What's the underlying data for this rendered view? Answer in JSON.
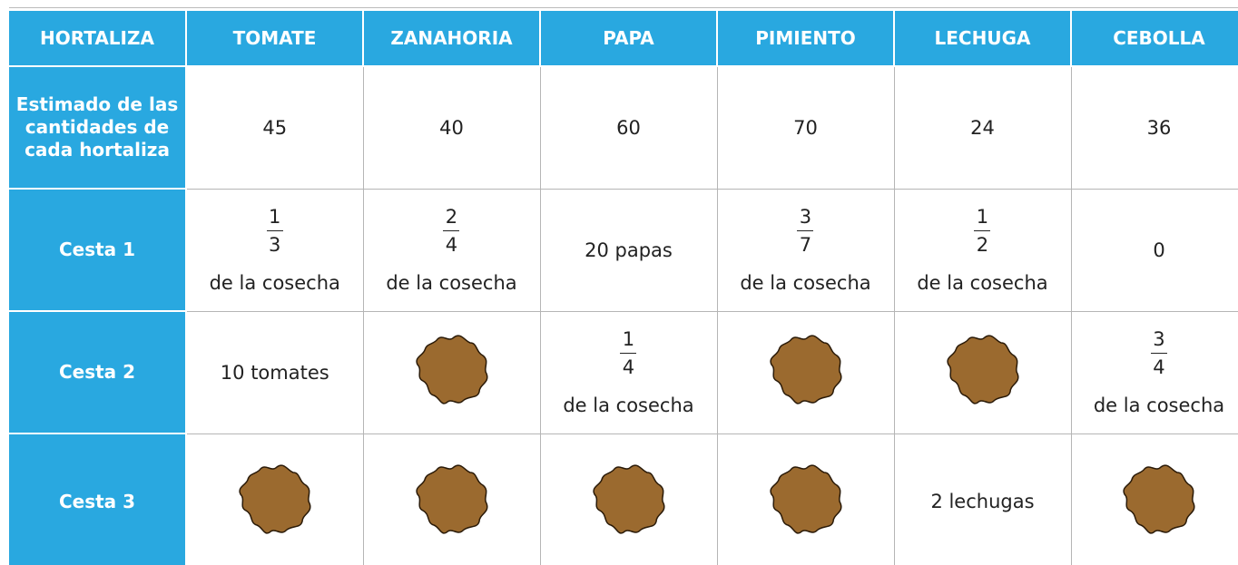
{
  "table": {
    "header": [
      "HORTALIZA",
      "TOMATE",
      "ZANAHORIA",
      "PAPA",
      "PIMIENTO",
      "LECHUGA",
      "CEBOLLA"
    ],
    "rows": [
      {
        "label": "Estimado de las cantidades de cada hortaliza",
        "cells": [
          45,
          40,
          60,
          70,
          24,
          36
        ]
      },
      {
        "label": "Cesta 1",
        "cells": [
          {
            "numerator": 1,
            "denominator": 3,
            "note": "de la cosecha"
          },
          {
            "numerator": 2,
            "denominator": 4,
            "note": "de la cosecha"
          },
          "20 papas",
          {
            "numerator": 3,
            "denominator": 7,
            "note": "de la cosecha"
          },
          {
            "numerator": 1,
            "denominator": 2,
            "note": "de la cosecha"
          },
          0
        ]
      },
      {
        "label": "Cesta 2",
        "cells": [
          "10 tomates",
          null,
          {
            "numerator": 1,
            "denominator": 4,
            "note": "de la cosecha"
          },
          null,
          null,
          {
            "numerator": 3,
            "denominator": 4,
            "note": "de la cosecha"
          }
        ]
      },
      {
        "label": "Cesta 3",
        "cells": [
          null,
          null,
          null,
          null,
          "2 lechugas",
          null
        ]
      }
    ]
  }
}
